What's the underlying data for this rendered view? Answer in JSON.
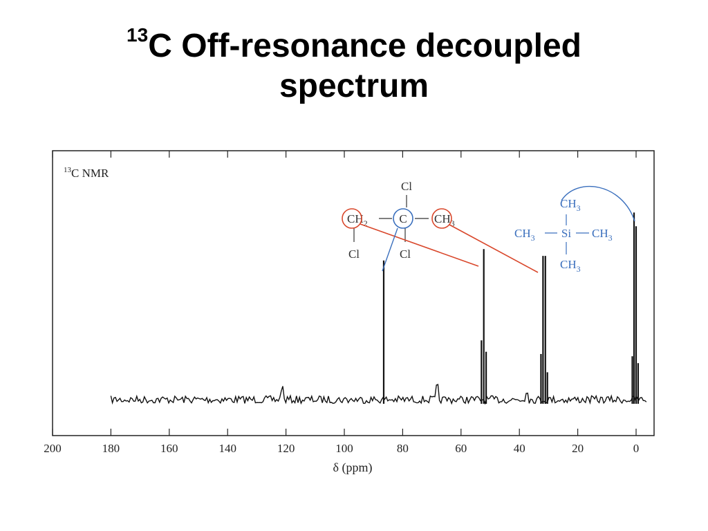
{
  "slide": {
    "title_sup": "13",
    "title_line1": "C Off-resonance decoupled",
    "title_line2": "spectrum"
  },
  "chart_data": {
    "type": "line",
    "title": "",
    "panel_label_sup": "13",
    "panel_label": "C NMR",
    "xlabel": "δ (ppm)",
    "xlim": [
      200,
      -4
    ],
    "x_inverted": true,
    "ticks": [
      200,
      180,
      160,
      140,
      120,
      100,
      80,
      60,
      40,
      20,
      0
    ],
    "tick_labels": [
      "200",
      "180",
      "160",
      "140",
      "120",
      "100",
      "80",
      "60",
      "40",
      "20",
      "0"
    ],
    "grid": false,
    "peaks": [
      {
        "assignment": "CCl2 carbon",
        "multiplicity": "singlet",
        "lines": [
          {
            "x": 86.5,
            "h": 0.61
          }
        ]
      },
      {
        "assignment": "CH2Cl carbon",
        "multiplicity": "triplet",
        "lines": [
          {
            "x": 53.0,
            "h": 0.26
          },
          {
            "x": 52.2,
            "h": 0.66
          },
          {
            "x": 51.4,
            "h": 0.21
          }
        ]
      },
      {
        "assignment": "CH3 carbon",
        "multiplicity": "quartet",
        "lines": [
          {
            "x": 32.6,
            "h": 0.2
          },
          {
            "x": 31.9,
            "h": 0.63
          },
          {
            "x": 31.1,
            "h": 0.63
          },
          {
            "x": 30.4,
            "h": 0.12
          }
        ]
      },
      {
        "assignment": "TMS",
        "multiplicity": "quartet",
        "lines": [
          {
            "x": 1.3,
            "h": 0.19
          },
          {
            "x": 0.7,
            "h": 0.82
          },
          {
            "x": 0.0,
            "h": 0.76
          },
          {
            "x": -0.7,
            "h": 0.16
          }
        ]
      }
    ],
    "noise_peaks": [
      {
        "x": 121.5,
        "h": 0.05
      },
      {
        "x": 68.0,
        "h": 0.05
      },
      {
        "x": 37.5,
        "h": 0.04
      }
    ],
    "colors": {
      "assignment_red": "#d9472b",
      "assignment_blue": "#3a6fbd",
      "trace": "#111111"
    },
    "molecule": {
      "cl_top": "Cl",
      "ch2": "CH",
      "ch2_sub": "2",
      "center_c": "C",
      "ch3": "CH",
      "ch3_sub": "3",
      "cl_bottom_left": "Cl",
      "cl_bottom_mid": "Cl",
      "bond_h": "—"
    },
    "tms": {
      "top": "CH",
      "top_sub": "3",
      "left": "CH",
      "left_sub": "3",
      "si": "Si",
      "right": "CH",
      "right_sub": "3",
      "bottom": "CH",
      "bottom_sub": "3"
    }
  }
}
